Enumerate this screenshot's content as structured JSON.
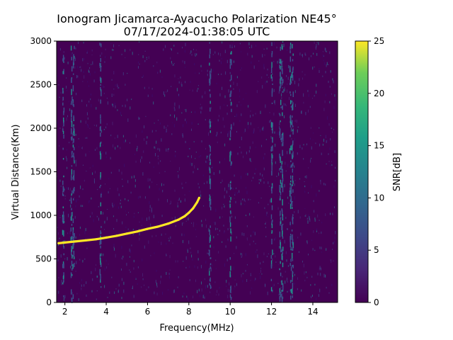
{
  "figure": {
    "title_line1": "Ionogram Jicamarca-Ayacucho Polarization NE45°",
    "title_line2": "07/17/2024-01:38:05 UTC"
  },
  "chart_data": {
    "type": "heatmap",
    "title": "Ionogram Jicamarca-Ayacucho Polarization NE45°",
    "subtitle": "07/17/2024-01:38:05 UTC",
    "xlabel": "Frequency(MHz)",
    "ylabel": "Virtual Distance(Km)",
    "xlim": [
      1.6,
      15.2
    ],
    "ylim": [
      0,
      3000
    ],
    "x_ticks": [
      2,
      4,
      6,
      8,
      10,
      12,
      14
    ],
    "y_ticks": [
      0,
      500,
      1000,
      1500,
      2000,
      2500,
      3000
    ],
    "colorbar": {
      "label": "SNR[dB]",
      "range": [
        0,
        25
      ],
      "ticks": [
        0,
        5,
        10,
        15,
        20,
        25
      ],
      "colormap": "viridis"
    },
    "colors": {
      "background": "#440154",
      "low": "#3b528b",
      "mid": "#21918c",
      "high": "#fde725"
    },
    "trace": {
      "name": "",
      "x": [
        1.7,
        2.0,
        2.5,
        3.0,
        3.5,
        4.0,
        4.5,
        5.0,
        5.5,
        6.0,
        6.5,
        7.0,
        7.5,
        7.8,
        8.0,
        8.2,
        8.4,
        8.5
      ],
      "y": [
        680,
        688,
        700,
        712,
        725,
        745,
        765,
        790,
        815,
        845,
        870,
        905,
        950,
        990,
        1030,
        1080,
        1150,
        1200
      ]
    },
    "interference_bands_mhz": [
      1.9,
      2.3,
      2.4,
      3.7,
      9.0,
      10.0,
      12.0,
      12.4,
      12.5,
      12.9,
      13.0
    ],
    "grid": false
  }
}
